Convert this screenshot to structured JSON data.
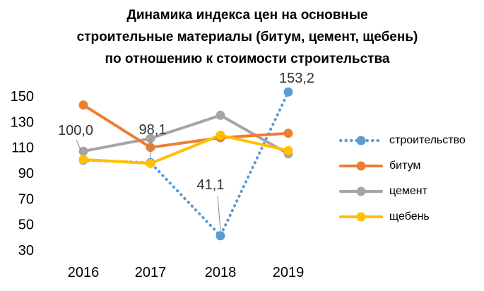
{
  "chart_data": {
    "type": "line",
    "title_lines": [
      "Динамика индекса цен на основные",
      "строительные материалы (битум, цемент, щебень)",
      "по отношению к стоимости строительства"
    ],
    "categories": [
      "2016",
      "2017",
      "2018",
      "2019"
    ],
    "yticks": [
      150,
      130,
      110,
      90,
      70,
      50,
      30
    ],
    "ylim": [
      30,
      160
    ],
    "grid": false,
    "legend_position": "right",
    "series": [
      {
        "name": "строительство",
        "values": [
          100.0,
          98.1,
          41.1,
          153.2
        ],
        "color": "#5B9BD5",
        "style": "dotted"
      },
      {
        "name": "битум",
        "values": [
          143,
          110,
          117.5,
          121
        ],
        "color": "#ED7D31",
        "style": "solid"
      },
      {
        "name": "цемент",
        "values": [
          107,
          117,
          135,
          105
        ],
        "color": "#A5A5A5",
        "style": "solid"
      },
      {
        "name": "щебень",
        "values": [
          100.5,
          97.5,
          119.5,
          107.5
        ],
        "color": "#FFC000",
        "style": "solid"
      }
    ],
    "data_labels": [
      "100,0",
      "98,1",
      "41,1",
      "153,2"
    ]
  }
}
